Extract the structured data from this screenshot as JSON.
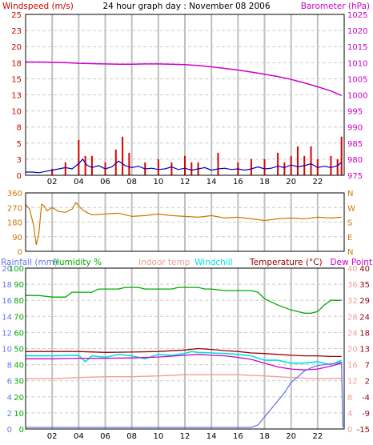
{
  "title": "24 hour graph day : November 08 2006",
  "colors": {
    "windspeed": "#dd0000",
    "gust": "#dd0000",
    "avgwind": "#0000bb",
    "barometer": "#cc00cc",
    "direction": "#cc7700",
    "rainfall": "#6677ee",
    "humidity": "#00aa00",
    "indoor": "#f0a090",
    "windchill": "#00e0e0",
    "temperature": "#990000",
    "dewpoint": "#cc00cc",
    "grid": "#cccccc",
    "vbar": "#c0c0c0",
    "red_text": "#cc0000"
  },
  "x_ticks": [
    "02",
    "04",
    "06",
    "08",
    "10",
    "12",
    "14",
    "16",
    "18",
    "20",
    "22"
  ],
  "panel1": {
    "left_label": "Windspeed (m/s)",
    "right_label": "Barometer (hPa)",
    "left_ticks": [
      "25",
      "23",
      "20",
      "18",
      "15",
      "13",
      "10",
      "8",
      "5",
      "3",
      "0"
    ],
    "right_ticks": [
      "1025",
      "1020",
      "1015",
      "1010",
      "1005",
      "1000",
      "995",
      "990",
      "985",
      "980",
      "975"
    ]
  },
  "panel2": {
    "left_ticks": [
      "360",
      "270",
      "180",
      "90",
      "0"
    ],
    "right_ticks": [
      "N",
      "W",
      "S",
      "E",
      "N"
    ]
  },
  "panel3": {
    "legend": {
      "rainfall": "Rainfall (mm)",
      "humidity": "Humidity %",
      "indoor": "Indoor temp",
      "windchill": "Windchill",
      "temperature": "Temperature (°C)",
      "dewpoint": "Dew Point"
    },
    "rain_ticks": [
      "20",
      "18",
      "16",
      "14",
      "12",
      "10",
      "8",
      "6",
      "4",
      "2",
      "0"
    ],
    "hum_ticks": [
      "100",
      "90",
      "80",
      "70",
      "60",
      "50",
      "40",
      "30",
      "20",
      "10",
      "0"
    ],
    "indoor_ticks": [
      "40",
      "36",
      "32",
      "28",
      "24",
      "20",
      "16",
      "12",
      "8",
      "4",
      "0"
    ],
    "temp_ticks": [
      "40",
      "35",
      "29",
      "24",
      "18",
      "13",
      "7",
      "2",
      "-4",
      "-9",
      "-15"
    ]
  },
  "chart_data": [
    {
      "type": "line",
      "panel": "wind-barometer",
      "x_unit": "hour",
      "x_range": [
        0,
        24
      ],
      "y_left": {
        "label": "Windspeed (m/s)",
        "range": [
          0,
          25
        ]
      },
      "y_right": {
        "label": "Barometer (hPa)",
        "range": [
          975,
          1025
        ]
      },
      "series": [
        {
          "name": "Barometer (hPa)",
          "axis": "right",
          "x": [
            0,
            1,
            2,
            3,
            4,
            5,
            6,
            7,
            8,
            9,
            10,
            11,
            12,
            13,
            14,
            15,
            16,
            17,
            18,
            19,
            20,
            21,
            22,
            23,
            23.8
          ],
          "values": [
            1010.2,
            1010.2,
            1010.1,
            1010.0,
            1009.8,
            1009.7,
            1009.6,
            1009.5,
            1009.5,
            1009.6,
            1009.6,
            1009.5,
            1009.4,
            1009.1,
            1008.7,
            1008.2,
            1007.7,
            1007.1,
            1006.4,
            1005.7,
            1004.8,
            1003.7,
            1002.5,
            1001.2,
            999.8
          ]
        },
        {
          "name": "Windspeed (m/s)",
          "axis": "left",
          "x": [
            0,
            0.5,
            1,
            1.5,
            2,
            2.5,
            3,
            3.5,
            4,
            4.3,
            4.6,
            5,
            5.5,
            6,
            6.5,
            7,
            7.5,
            8,
            8.5,
            9,
            9.5,
            10,
            10.5,
            11,
            11.5,
            12,
            12.5,
            13,
            13.5,
            14,
            14.5,
            15,
            15.5,
            16,
            16.5,
            17,
            17.5,
            18,
            18.5,
            19,
            19.5,
            20,
            20.5,
            21,
            21.5,
            22,
            22.5,
            23,
            23.5,
            23.8
          ],
          "values": [
            0.5,
            0.5,
            0.4,
            0.6,
            0.8,
            1.0,
            1.2,
            1.0,
            1.8,
            2.5,
            1.6,
            1.2,
            1.5,
            1.0,
            1.3,
            2.2,
            1.5,
            1.2,
            1.4,
            1.0,
            1.1,
            0.9,
            1.0,
            1.3,
            0.9,
            1.1,
            0.8,
            1.0,
            1.2,
            0.8,
            1.0,
            1.1,
            0.9,
            1.0,
            0.8,
            1.0,
            1.3,
            1.0,
            1.1,
            1.4,
            1.2,
            1.6,
            1.3,
            1.5,
            1.8,
            1.2,
            1.4,
            1.2,
            1.5,
            2.0
          ]
        },
        {
          "name": "Gust (m/s)",
          "axis": "left",
          "x": [
            2,
            3,
            4,
            4.5,
            5,
            6,
            6.8,
            7.3,
            7.8,
            9,
            10,
            11,
            12,
            12.5,
            13,
            14.5,
            16,
            17,
            18,
            19,
            19.5,
            20,
            20.5,
            21,
            21.5,
            22,
            23,
            23.5,
            23.8
          ],
          "values": [
            1.0,
            2.0,
            5.5,
            3.0,
            3.0,
            2.0,
            4.0,
            6.0,
            3.5,
            2.0,
            2.5,
            2.0,
            3.0,
            2.0,
            2.0,
            3.5,
            2.0,
            2.5,
            2.5,
            3.5,
            2.0,
            3.0,
            4.5,
            3.0,
            4.5,
            2.5,
            3.0,
            2.5,
            6.0
          ]
        }
      ]
    },
    {
      "type": "line",
      "panel": "wind-direction",
      "x_unit": "hour",
      "x_range": [
        0,
        24
      ],
      "y_left": {
        "range": [
          0,
          360
        ]
      },
      "series": [
        {
          "name": "Direction",
          "x": [
            0,
            0.3,
            0.6,
            0.8,
            1.0,
            1.2,
            1.4,
            1.6,
            2,
            2.5,
            3,
            3.5,
            3.8,
            4,
            4.3,
            4.6,
            5,
            6,
            7,
            8,
            9,
            10,
            11,
            12,
            13,
            14,
            15,
            16,
            17,
            18,
            19,
            20,
            21,
            22,
            23,
            23.8
          ],
          "values": [
            290,
            260,
            160,
            40,
            110,
            290,
            280,
            250,
            270,
            245,
            240,
            260,
            300,
            280,
            255,
            240,
            225,
            230,
            235,
            215,
            220,
            230,
            220,
            215,
            210,
            220,
            205,
            210,
            200,
            190,
            200,
            205,
            200,
            210,
            205,
            210
          ]
        }
      ]
    },
    {
      "type": "line",
      "panel": "temperature-humidity-rain",
      "x_unit": "hour",
      "x_range": [
        0,
        24
      ],
      "axes": {
        "rainfall": {
          "label": "Rainfall (mm)",
          "range": [
            0,
            20
          ]
        },
        "humidity": {
          "label": "Humidity %",
          "range": [
            0,
            100
          ]
        },
        "indoor": {
          "label": "Indoor temp",
          "range": [
            0,
            40
          ]
        },
        "temperature": {
          "label": "Temperature (°C)",
          "range": [
            -15,
            40
          ]
        }
      },
      "series": [
        {
          "name": "Humidity %",
          "axis": "humidity",
          "x": [
            0,
            1,
            2,
            3,
            3.5,
            5,
            5.5,
            7,
            7.5,
            8.5,
            9,
            11,
            11.5,
            13,
            13.5,
            14,
            15,
            16,
            17,
            17.5,
            18,
            19,
            20,
            20.5,
            21,
            21.5,
            22,
            22.5,
            23,
            23.8
          ],
          "values": [
            83,
            83,
            82,
            82,
            85,
            85,
            87,
            87,
            88,
            88,
            87,
            87,
            88,
            88,
            87,
            87,
            86,
            86,
            86,
            85,
            81,
            77,
            74,
            73,
            72,
            72,
            73,
            77,
            80,
            80
          ]
        },
        {
          "name": "Indoor temp",
          "axis": "indoor",
          "x": [
            0,
            2,
            4,
            6,
            8,
            10,
            12,
            14,
            16,
            18,
            20,
            22,
            23.8
          ],
          "values": [
            12.5,
            12.5,
            12.8,
            13.0,
            13.0,
            13.2,
            13.5,
            13.5,
            13.5,
            13.2,
            12.8,
            12.5,
            12.6
          ]
        },
        {
          "name": "Windchill",
          "axis": "temperature",
          "x": [
            0,
            2,
            4,
            4.5,
            5,
            6,
            7,
            8,
            9,
            10,
            11,
            12,
            12.5,
            13,
            14,
            15,
            16,
            17,
            18,
            19,
            20,
            21,
            22,
            23,
            23.8
          ],
          "values": [
            10.0,
            10.0,
            10.2,
            8.0,
            10.0,
            9.5,
            10.5,
            10.0,
            9.0,
            10.5,
            10.2,
            10.8,
            11.5,
            11.2,
            11.0,
            10.8,
            10.5,
            10.0,
            8.5,
            8.5,
            7.5,
            7.5,
            8.0,
            7.0,
            8.5
          ]
        },
        {
          "name": "Temperature (°C)",
          "axis": "temperature",
          "x": [
            0,
            2,
            4,
            6,
            8,
            10,
            12,
            13,
            14,
            15,
            16,
            17,
            18,
            19,
            20,
            21,
            22,
            23,
            23.8
          ],
          "values": [
            11.5,
            11.5,
            11.5,
            11.2,
            11.3,
            11.5,
            12.0,
            12.5,
            12.2,
            11.8,
            11.5,
            11.0,
            10.8,
            10.5,
            10.2,
            10.0,
            10.0,
            9.8,
            9.8
          ]
        },
        {
          "name": "Dew Point",
          "axis": "temperature",
          "x": [
            0,
            2,
            4,
            6,
            8,
            10,
            12,
            13,
            14,
            15,
            16,
            17,
            18,
            19,
            20,
            21,
            22,
            23,
            23.8
          ],
          "values": [
            9.0,
            9.0,
            9.2,
            9.2,
            9.3,
            9.6,
            10.2,
            10.5,
            10.2,
            10.0,
            9.5,
            8.8,
            7.5,
            6.2,
            5.5,
            5.2,
            5.5,
            6.5,
            7.5
          ]
        },
        {
          "name": "Rainfall (mm)",
          "axis": "rainfall",
          "x": [
            0,
            17,
            17.5,
            18,
            18.5,
            19,
            19.5,
            20,
            20.5,
            21,
            21.5,
            22,
            22.5,
            23,
            23.5,
            23.8,
            23.9
          ],
          "values": [
            0.2,
            0.2,
            0.5,
            1.5,
            2.5,
            3.5,
            4.5,
            5.8,
            6.5,
            7.2,
            7.6,
            7.9,
            8.0,
            8.1,
            8.2,
            8.3,
            0.2
          ]
        }
      ]
    }
  ]
}
